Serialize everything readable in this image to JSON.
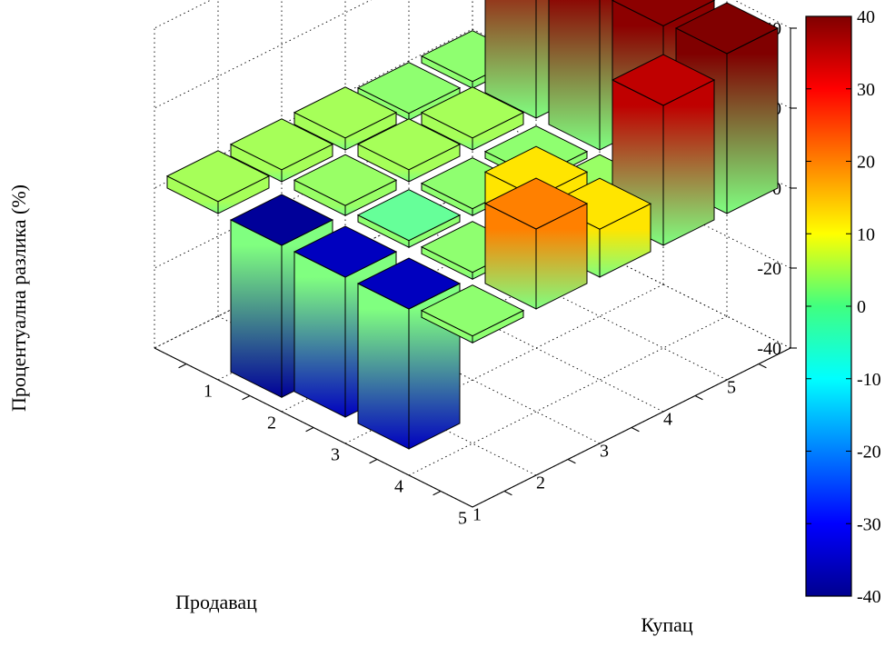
{
  "chart_data": {
    "type": "bar3d",
    "title": "",
    "zlabel": "Процентуална разлика (%)",
    "xlabel": "Купац",
    "ylabel": "Продавац",
    "zlim": [
      -40,
      40
    ],
    "zticks": [
      "40",
      "20",
      "0",
      "-20",
      "-40"
    ],
    "kupac_ticks": [
      "1",
      "2",
      "3",
      "4",
      "5"
    ],
    "prodavac_ticks": [
      "5",
      "4",
      "3",
      "2",
      "1"
    ],
    "colorbar": {
      "colormap": "jet",
      "range": [
        -40,
        40
      ],
      "ticks": [
        "40",
        "30",
        "20",
        "10",
        "0",
        "-10",
        "-20",
        "-30",
        "-40"
      ]
    },
    "grid": true,
    "bars": [
      {
        "kupac": 1,
        "prodavac": 1,
        "value": 40
      },
      {
        "kupac": 1,
        "prodavac": 2,
        "value": 39
      },
      {
        "kupac": 1,
        "prodavac": 3,
        "value": 39
      },
      {
        "kupac": 1,
        "prodavac": 4,
        "value": 38
      },
      {
        "kupac": 1,
        "prodavac": 5,
        "value": 0
      },
      {
        "kupac": 2,
        "prodavac": 1,
        "value": 35
      },
      {
        "kupac": 2,
        "prodavac": 2,
        "value": 2
      },
      {
        "kupac": 2,
        "prodavac": 3,
        "value": 0
      },
      {
        "kupac": 2,
        "prodavac": 4,
        "value": 3
      },
      {
        "kupac": 2,
        "prodavac": 5,
        "value": 0
      },
      {
        "kupac": 3,
        "prodavac": 1,
        "value": 12
      },
      {
        "kupac": 3,
        "prodavac": 2,
        "value": 12
      },
      {
        "kupac": 3,
        "prodavac": 3,
        "value": 0
      },
      {
        "kupac": 3,
        "prodavac": 4,
        "value": 3
      },
      {
        "kupac": 3,
        "prodavac": 5,
        "value": 3
      },
      {
        "kupac": 4,
        "prodavac": 1,
        "value": 20
      },
      {
        "kupac": 4,
        "prodavac": 2,
        "value": 0
      },
      {
        "kupac": 4,
        "prodavac": 3,
        "value": -2
      },
      {
        "kupac": 4,
        "prodavac": 4,
        "value": 2
      },
      {
        "kupac": 4,
        "prodavac": 5,
        "value": 3
      },
      {
        "kupac": 5,
        "prodavac": 1,
        "value": 0
      },
      {
        "kupac": 5,
        "prodavac": 2,
        "value": -35
      },
      {
        "kupac": 5,
        "prodavac": 3,
        "value": -35
      },
      {
        "kupac": 5,
        "prodavac": 4,
        "value": -38
      },
      {
        "kupac": 5,
        "prodavac": 5,
        "value": 3
      }
    ]
  }
}
